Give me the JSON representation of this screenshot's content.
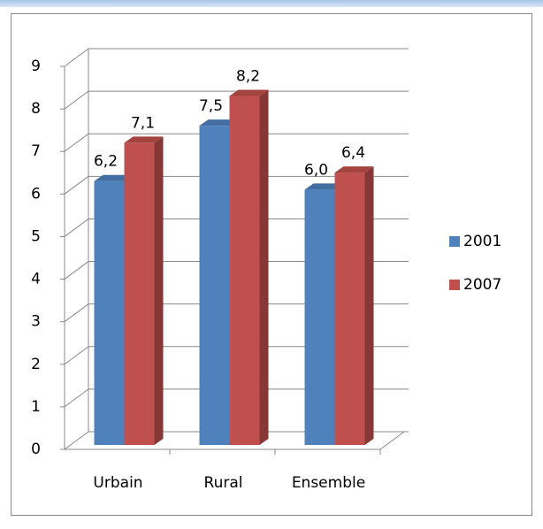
{
  "chart_data": {
    "type": "bar3d",
    "categories": [
      "Urbain",
      "Rural",
      "Ensemble"
    ],
    "series": [
      {
        "name": "2001",
        "color": "#4f81bd",
        "values": [
          6.2,
          7.5,
          6.0
        ],
        "value_labels": [
          "6,2",
          "7,5",
          "6,0"
        ]
      },
      {
        "name": "2007",
        "color": "#c0504d",
        "values": [
          7.1,
          8.2,
          6.4
        ],
        "value_labels": [
          "7,1",
          "8,2",
          "6,4"
        ]
      }
    ],
    "ylim": [
      0,
      9
    ],
    "yticks": [
      0,
      1,
      2,
      3,
      4,
      5,
      6,
      7,
      8,
      9
    ],
    "grid": true,
    "legend": "right"
  }
}
